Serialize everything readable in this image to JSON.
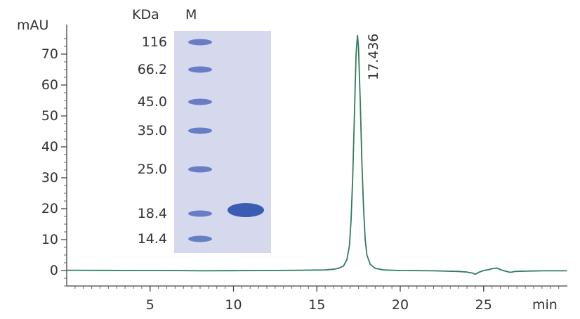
{
  "chart_data": {
    "type": "line",
    "ylabel": "mAU",
    "xlabel": "min",
    "xlim": [
      0,
      30
    ],
    "ylim": [
      -5,
      78
    ],
    "x_ticks": [
      5,
      10,
      15,
      20,
      25
    ],
    "y_ticks": [
      0,
      10,
      20,
      30,
      40,
      50,
      60,
      70
    ],
    "series": [
      {
        "color": "#2e7d5b",
        "points": [
          [
            0.0,
            0.1
          ],
          [
            2.0,
            0.05
          ],
          [
            4.0,
            0.0
          ],
          [
            6.0,
            0.0
          ],
          [
            8.0,
            -0.1
          ],
          [
            10.0,
            -0.05
          ],
          [
            12.0,
            0.0
          ],
          [
            14.0,
            0.1
          ],
          [
            15.5,
            0.2
          ],
          [
            16.0,
            0.4
          ],
          [
            16.3,
            0.7
          ],
          [
            16.6,
            1.5
          ],
          [
            16.8,
            3.5
          ],
          [
            16.95,
            8.0
          ],
          [
            17.05,
            16.0
          ],
          [
            17.15,
            30.0
          ],
          [
            17.25,
            50.0
          ],
          [
            17.35,
            70.0
          ],
          [
            17.436,
            76.0
          ],
          [
            17.5,
            72.0
          ],
          [
            17.6,
            55.0
          ],
          [
            17.7,
            35.0
          ],
          [
            17.8,
            20.0
          ],
          [
            17.9,
            10.0
          ],
          [
            18.0,
            5.0
          ],
          [
            18.2,
            2.0
          ],
          [
            18.5,
            0.7
          ],
          [
            19.0,
            0.2
          ],
          [
            20.0,
            0.0
          ],
          [
            22.0,
            -0.1
          ],
          [
            23.5,
            -0.3
          ],
          [
            24.0,
            -0.5
          ],
          [
            24.3,
            -0.8
          ],
          [
            24.5,
            -1.2
          ],
          [
            24.7,
            -0.6
          ],
          [
            25.0,
            0.0
          ],
          [
            25.3,
            0.3
          ],
          [
            25.5,
            0.6
          ],
          [
            25.8,
            0.8
          ],
          [
            26.0,
            0.3
          ],
          [
            26.3,
            -0.2
          ],
          [
            26.6,
            -0.6
          ],
          [
            26.9,
            -0.3
          ],
          [
            27.5,
            -0.2
          ],
          [
            28.5,
            -0.1
          ],
          [
            30.0,
            -0.1
          ]
        ]
      }
    ],
    "annotations": [
      {
        "text": "17.436",
        "x": 17.436,
        "y": 76.0
      }
    ]
  },
  "inset": {
    "kda_label": "KDa",
    "lane_marker_label": "M",
    "marker_labels": [
      "116",
      "66.2",
      "45.0",
      "35.0",
      "25.0",
      "18.4",
      "14.4"
    ],
    "gel_color": "#d6d8ee",
    "band_color": "#3c5bb5"
  }
}
